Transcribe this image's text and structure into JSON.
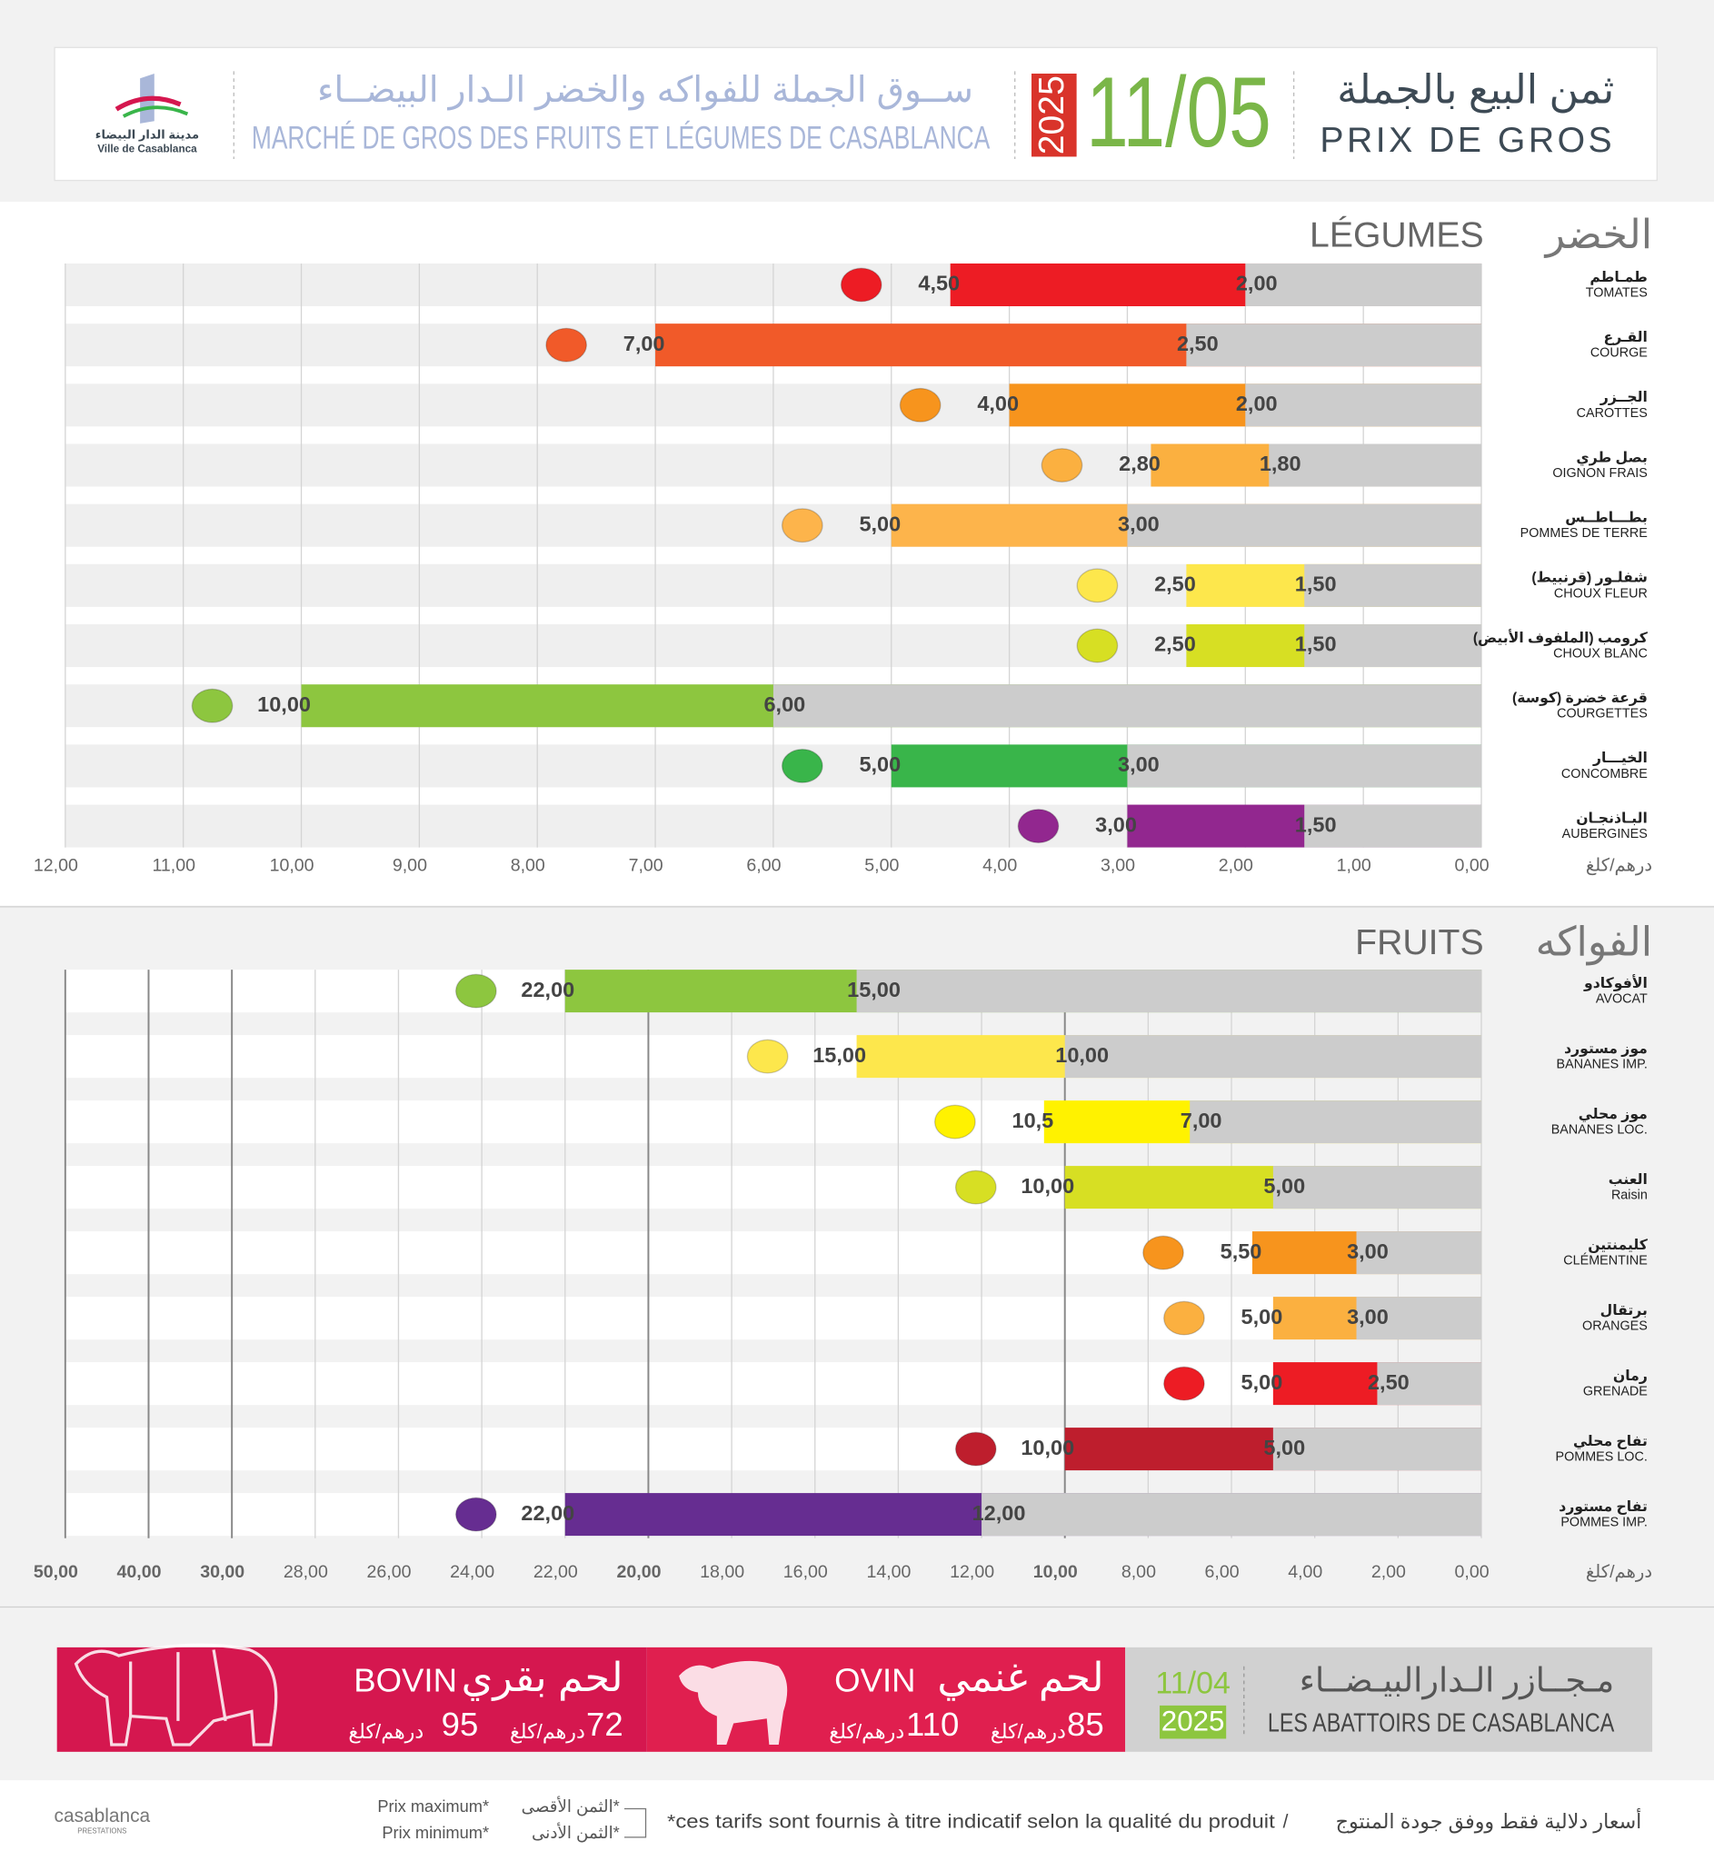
{
  "header": {
    "title_ar": "ثمن البيع بالجملة",
    "title": "PRIX DE GROS",
    "date": "11/05",
    "year": "2025",
    "market_ar": "ســوق الجملة للفواكه والخضر الـدار البيضــاء",
    "market": "MARCHÉ DE GROS DES FRUITS ET LÉGUMES DE CASABLANCA",
    "logo_ar": "مدينة الدار البيضاء",
    "logo": "Ville de Casablanca"
  },
  "chart_data": [
    {
      "type": "bar",
      "title": "LÉGUMES",
      "title_ar": "الخضر",
      "x_reversed": true,
      "axis_unit": "درهم/كلغ",
      "categories": [
        "TOMATES",
        "COURGE",
        "CAROTTES",
        "OIGNON FRAIS",
        "POMMES DE TERRE",
        "CHOUX FLEUR",
        "CHOUX BLANC",
        "COURGETTES",
        "CONCOMBRE",
        "AUBERGINES"
      ],
      "categories_ar": [
        "طمـاطم",
        "القـرع",
        "الجــزر",
        "بصل طري",
        "بطـــاطــس",
        "شفلـور (قرنبيط)",
        "كرومب (الملفوف الأبيض)",
        "قرعة خضرة (كوسة)",
        "الخيـــار",
        "البـاذنجـان"
      ],
      "series": [
        {
          "name": "Prix maximum*",
          "name_ar": "الثمن الأقصى*",
          "colors": [
            "#ed1c24",
            "#f15a29",
            "#f7941d",
            "#fbb040",
            "#fdb44b",
            "#fde74c",
            "#d7df23",
            "#8dc63f",
            "#39b54a",
            "#92278f"
          ],
          "values": [
            4.5,
            7,
            4,
            2.8,
            5,
            2.5,
            2.5,
            10,
            5,
            3
          ],
          "value_labels": [
            "4,50",
            "7,00",
            "4,00",
            "2,80",
            "5,00",
            "2,50",
            "2,50",
            "10,00",
            "5,00",
            "3,00"
          ]
        },
        {
          "name": "Prix minimum*",
          "name_ar": "الثمن الأدنى*",
          "color": "#cccccc",
          "values": [
            2,
            2.5,
            2,
            1.8,
            3,
            1.5,
            1.5,
            6,
            3,
            1.5
          ],
          "value_labels": [
            "2,00",
            "2,50",
            "2,00",
            "1,80",
            "3,00",
            "1,50",
            "1,50",
            "6,00",
            "3,00",
            "1,50"
          ]
        }
      ],
      "xlim": [
        0,
        12
      ],
      "xticks": [
        {
          "value": 0,
          "label": "0,00"
        },
        {
          "value": 1,
          "label": "1,00"
        },
        {
          "value": 2,
          "label": "2,00"
        },
        {
          "value": 3,
          "label": "3,00"
        },
        {
          "value": 4,
          "label": "4,00"
        },
        {
          "value": 5,
          "label": "5,00"
        },
        {
          "value": 6,
          "label": "6,00"
        },
        {
          "value": 7,
          "label": "7,00"
        },
        {
          "value": 8,
          "label": "8,00"
        },
        {
          "value": 9,
          "label": "9,00"
        },
        {
          "value": 10,
          "label": "10,00"
        },
        {
          "value": 11,
          "label": "11,00"
        },
        {
          "value": 12,
          "label": "12,00"
        }
      ],
      "grid": true
    },
    {
      "type": "bar",
      "title": "FRUITS",
      "title_ar": "الفواكه",
      "x_reversed": true,
      "axis_unit": "درهم/كلغ",
      "categories": [
        "AVOCAT",
        "BANANES IMP.",
        "BANANES LOC.",
        "Raisin",
        "CLÉMENTINE",
        "ORANGES",
        "GRENADE",
        "POMMES LOC.",
        "POMMES IMP."
      ],
      "categories_ar": [
        "الأفوكادو",
        "موز مستورد",
        "موز محلي",
        "العنب",
        "كليمنتين",
        "برتقال",
        "رمان",
        "تفاح محلي",
        "تفاح مستورد"
      ],
      "series": [
        {
          "colors": [
            "#8dc63f",
            "#fde74c",
            "#fff200",
            "#d7df23",
            "#f7941d",
            "#fbb040",
            "#ed1c24",
            "#be1e2d",
            "#662d91"
          ],
          "values": [
            22,
            15,
            10.5,
            10,
            5.5,
            5,
            5,
            10,
            22
          ],
          "value_labels": [
            "22,00",
            "15,00",
            "10,5",
            "10,00",
            "5,50",
            "5,00",
            "5,00",
            "10,00",
            "22,00"
          ]
        },
        {
          "color": "#cccccc",
          "values": [
            15,
            10,
            7,
            5,
            3,
            3,
            2.5,
            5,
            12
          ],
          "value_labels": [
            "15,00",
            "10,00",
            "7,00",
            "5,00",
            "3,00",
            "3,00",
            "2,50",
            "5,00",
            "12,00"
          ]
        }
      ],
      "xlim": [
        0,
        50
      ],
      "xticks": [
        {
          "value": 0,
          "label": "0,00"
        },
        {
          "value": 2,
          "label": "2,00"
        },
        {
          "value": 4,
          "label": "4,00"
        },
        {
          "value": 6,
          "label": "6,00"
        },
        {
          "value": 8,
          "label": "8,00"
        },
        {
          "value": 10,
          "label": "10,00"
        },
        {
          "value": 12,
          "label": "12,00"
        },
        {
          "value": 14,
          "label": "14,00"
        },
        {
          "value": 16,
          "label": "16,00"
        },
        {
          "value": 18,
          "label": "18,00"
        },
        {
          "value": 20,
          "label": "20,00"
        },
        {
          "value": 22,
          "label": "22,00"
        },
        {
          "value": 24,
          "label": "24,00"
        },
        {
          "value": 26,
          "label": "26,00"
        },
        {
          "value": 28,
          "label": "28,00"
        },
        {
          "value": 30,
          "label": "30,00"
        },
        {
          "value": 40,
          "label": "40,00"
        },
        {
          "value": 50,
          "label": "50,00"
        }
      ],
      "grid": true
    }
  ],
  "meat": {
    "title_ar": "مـجــازر الـدارالبيـضــاء",
    "title": "LES ABATTOIRS DE CASABLANCA",
    "date": "11/04",
    "year": "2025",
    "unit": "درهم/كلغ",
    "items": [
      {
        "name": "BOVIN",
        "name_ar": "لحم بقري",
        "min": 72,
        "max": 95
      },
      {
        "name": "OVIN",
        "name_ar": "لحم غنمي",
        "min": 85,
        "max": 110
      }
    ]
  },
  "footer": {
    "note": "*ces tarifs sont fournis à titre indicatif selon la qualité du produit",
    "note_ar": "أسعار دلالية فقط ووفق جودة المنتوج",
    "logo": "casablanca",
    "logo_sub": "PRESTATIONS"
  }
}
